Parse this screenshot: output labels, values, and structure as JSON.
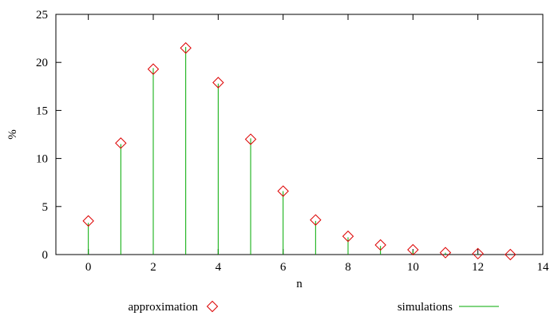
{
  "chart_data": {
    "type": "scatter",
    "xlabel": "n",
    "ylabel": "%",
    "xlim": [
      -1,
      14
    ],
    "ylim": [
      0,
      25
    ],
    "x_ticks": [
      0,
      2,
      4,
      6,
      8,
      10,
      12,
      14
    ],
    "y_ticks": [
      0,
      5,
      10,
      15,
      20,
      25
    ],
    "grid": false,
    "legend_position": "bottom",
    "series": [
      {
        "name": "approximation",
        "marker": "diamond",
        "color": "#dd0000",
        "x": [
          0,
          1,
          2,
          3,
          4,
          5,
          6,
          7,
          8,
          9,
          10,
          11,
          12,
          13
        ],
        "values": [
          3.5,
          11.6,
          19.3,
          21.5,
          17.9,
          12.0,
          6.6,
          3.6,
          1.9,
          1.0,
          0.5,
          0.2,
          0.1,
          0.0
        ]
      },
      {
        "name": "simulations",
        "marker": "impulse",
        "color": "#00aa00",
        "x": [
          0,
          1,
          2,
          3,
          4,
          5,
          6,
          7,
          8,
          9,
          10,
          11,
          12,
          13
        ],
        "values": [
          3.3,
          11.5,
          19.4,
          21.6,
          17.8,
          12.1,
          6.6,
          3.5,
          1.8,
          0.9,
          0.4,
          0.2,
          0.1,
          0.0
        ]
      }
    ]
  }
}
